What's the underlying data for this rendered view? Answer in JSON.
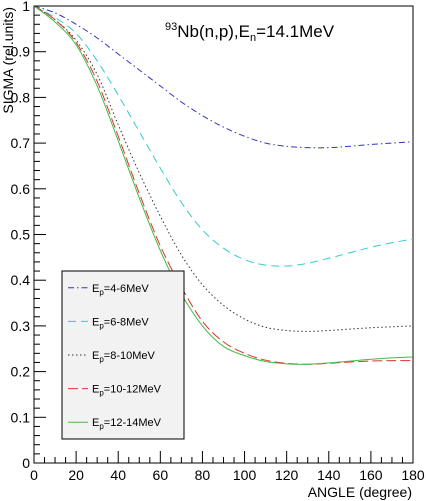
{
  "chart_data": {
    "type": "line",
    "title": {
      "pre": "",
      "sup": "93",
      "main": "Nb(n,p),E",
      "sub": "n",
      "post": "=14.1MeV"
    },
    "xlabel": "ANGLE  (degree)",
    "ylabel": "SIGMA  (rel.units)",
    "xlim": [
      0,
      180
    ],
    "ylim": [
      0,
      1
    ],
    "xticks": [
      0,
      20,
      40,
      60,
      80,
      100,
      120,
      140,
      160,
      180
    ],
    "xtick_labels": [
      "0",
      "20",
      "40",
      "60",
      "80",
      "100",
      "120",
      "140",
      "160",
      "180"
    ],
    "yticks": [
      0,
      0.1,
      0.2,
      0.3,
      0.4,
      0.5,
      0.6,
      0.7,
      0.8,
      0.9,
      1
    ],
    "ytick_labels": [
      "0",
      "0.1",
      "0.2",
      "0.3",
      "0.4",
      "0.5",
      "0.6",
      "0.7",
      "0.8",
      "0.9",
      "1"
    ],
    "grid": false,
    "legend_placement": "bottom-left",
    "x": [
      0,
      10,
      20,
      30,
      40,
      50,
      60,
      70,
      80,
      90,
      100,
      110,
      120,
      130,
      140,
      150,
      160,
      170,
      180
    ],
    "series": [
      {
        "name": "E_p=4-6MeV",
        "label": {
          "main": "E",
          "sub": "p",
          "post": "=4-6MeV"
        },
        "color": "#3333cc",
        "dash": "6,3,1.5,3",
        "values": [
          1.0,
          0.985,
          0.96,
          0.93,
          0.895,
          0.86,
          0.825,
          0.79,
          0.76,
          0.735,
          0.715,
          0.7,
          0.693,
          0.69,
          0.69,
          0.693,
          0.697,
          0.7,
          0.703
        ]
      },
      {
        "name": "E_p=6-8MeV",
        "label": {
          "main": "E",
          "sub": "p",
          "post": "=6-8MeV"
        },
        "color": "#33cccc",
        "dash": "8,5",
        "values": [
          1.0,
          0.975,
          0.94,
          0.88,
          0.805,
          0.725,
          0.645,
          0.57,
          0.51,
          0.47,
          0.445,
          0.433,
          0.431,
          0.437,
          0.448,
          0.46,
          0.472,
          0.482,
          0.49
        ]
      },
      {
        "name": "E_p=8-10MeV",
        "label": {
          "main": "E",
          "sub": "p",
          "post": "=8-10MeV"
        },
        "color": "#333333",
        "dash": "1.5,2.5",
        "values": [
          1.0,
          0.97,
          0.925,
          0.85,
          0.74,
          0.635,
          0.54,
          0.455,
          0.39,
          0.345,
          0.315,
          0.297,
          0.29,
          0.288,
          0.29,
          0.293,
          0.296,
          0.298,
          0.3
        ]
      },
      {
        "name": "E_p=10-12MeV",
        "label": {
          "main": "E",
          "sub": "p",
          "post": "=10-12MeV"
        },
        "color": "#dd3333",
        "dash": "10,4",
        "values": [
          1.0,
          0.97,
          0.92,
          0.835,
          0.715,
          0.59,
          0.475,
          0.385,
          0.31,
          0.265,
          0.24,
          0.225,
          0.218,
          0.216,
          0.218,
          0.221,
          0.223,
          0.224,
          0.224
        ]
      },
      {
        "name": "E_p=12-14MeV",
        "label": {
          "main": "E",
          "sub": "p",
          "post": "=12-14MeV"
        },
        "color": "#44bb44",
        "dash": "",
        "values": [
          1.0,
          0.965,
          0.915,
          0.825,
          0.705,
          0.58,
          0.465,
          0.37,
          0.3,
          0.255,
          0.235,
          0.222,
          0.217,
          0.216,
          0.219,
          0.223,
          0.227,
          0.23,
          0.232
        ]
      }
    ]
  }
}
